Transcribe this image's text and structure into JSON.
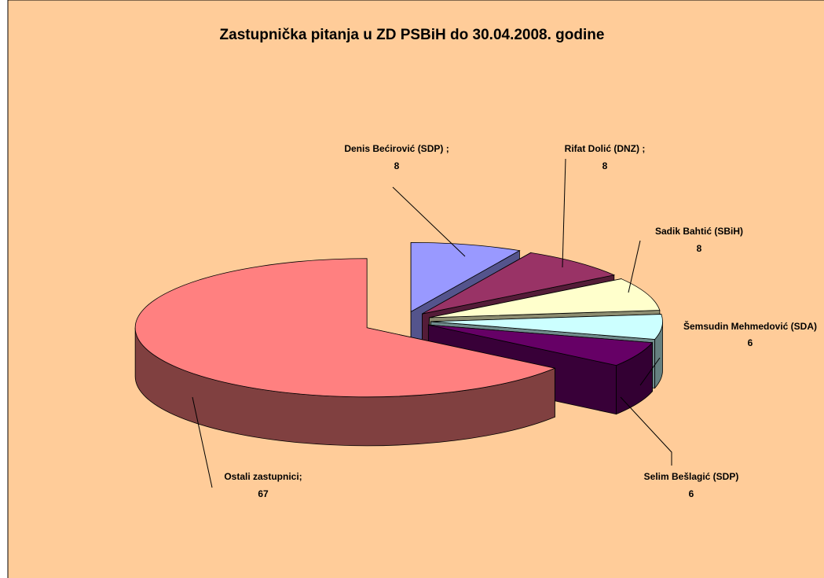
{
  "chart_data": {
    "type": "pie3d",
    "title": "Zastupnička pitanja u ZD PSBiH do 30.04.2008. godine",
    "categories": [
      "Denis Bećirović (SDP) ;",
      "Rifat Dolić (DNZ) ;",
      "Sadik Bahtić (SBiH)",
      "Šemsudin Mehmedović (SDA)",
      "Selim Bešlagić (SDP)",
      "Ostali zastupnici;"
    ],
    "values": [
      8,
      8,
      8,
      6,
      6,
      67
    ],
    "colors": [
      "#9999ff",
      "#993366",
      "#ffffcc",
      "#ccffff",
      "#660066",
      "#ff8080"
    ],
    "background": "#ffcc99"
  }
}
